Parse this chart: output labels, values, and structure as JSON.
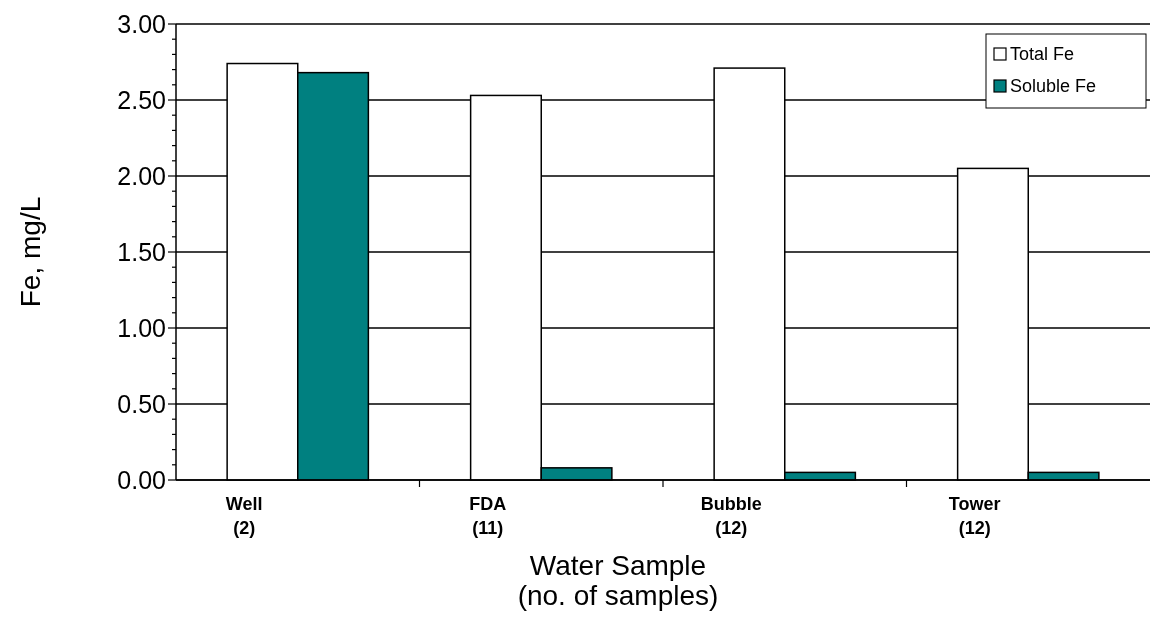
{
  "chart_data": {
    "type": "bar",
    "xlabel": "Water Sample\n(no. of samples)",
    "ylabel": "Fe, mg/L",
    "categories": [
      "Well\n(2)",
      "FDA\n(11)",
      "Bubble\n(12)",
      "Tower\n(12)"
    ],
    "series": [
      {
        "name": "Total Fe",
        "color": "#ffffff",
        "values": [
          2.74,
          2.53,
          2.71,
          2.05
        ]
      },
      {
        "name": "Soluble Fe",
        "color": "#008080",
        "values": [
          2.68,
          0.08,
          0.05,
          0.05
        ]
      }
    ],
    "ylim": [
      0,
      3
    ],
    "yticks": [
      {
        "value": 0,
        "label": "0.00"
      },
      {
        "value": 0.1,
        "label": null
      },
      {
        "value": 0.2,
        "label": null
      },
      {
        "value": 0.3,
        "label": null
      },
      {
        "value": 0.4,
        "label": null
      },
      {
        "value": 0.5,
        "label": "0.50"
      },
      {
        "value": 0.6,
        "label": null
      },
      {
        "value": 0.7,
        "label": null
      },
      {
        "value": 0.8,
        "label": null
      },
      {
        "value": 0.9,
        "label": null
      },
      {
        "value": 1,
        "label": "1.00"
      },
      {
        "value": 1.1,
        "label": null
      },
      {
        "value": 1.2,
        "label": null
      },
      {
        "value": 1.3,
        "label": null
      },
      {
        "value": 1.4,
        "label": null
      },
      {
        "value": 1.5,
        "label": "1.50"
      },
      {
        "value": 1.6,
        "label": null
      },
      {
        "value": 1.7,
        "label": null
      },
      {
        "value": 1.8,
        "label": null
      },
      {
        "value": 1.9,
        "label": null
      },
      {
        "value": 2,
        "label": "2.00"
      },
      {
        "value": 2.1,
        "label": null
      },
      {
        "value": 2.2,
        "label": null
      },
      {
        "value": 2.3,
        "label": null
      },
      {
        "value": 2.4,
        "label": null
      },
      {
        "value": 2.5,
        "label": "2.50"
      },
      {
        "value": 2.6,
        "label": null
      },
      {
        "value": 2.7,
        "label": null
      },
      {
        "value": 2.8,
        "label": null
      },
      {
        "value": 2.9,
        "label": null
      },
      {
        "value": 3,
        "label": "3.00"
      }
    ],
    "grid": "y",
    "legend": "top right"
  }
}
